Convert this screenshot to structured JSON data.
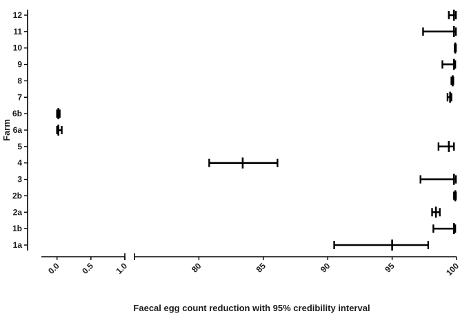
{
  "chart_data": {
    "type": "forest",
    "xlabel": "Faecal egg count reduction with 95% credibility interval",
    "ylabel": "Farm",
    "x_axis": {
      "broken": true,
      "segments": [
        {
          "range": [
            -0.2,
            1.0
          ],
          "ticks": [
            0.0,
            0.5,
            1.0
          ],
          "tick_labels": [
            "0.0",
            "0.5",
            "1.0"
          ]
        },
        {
          "range": [
            75,
            100
          ],
          "ticks": [
            80,
            85,
            90,
            95,
            100
          ],
          "tick_labels": [
            "80",
            "85",
            "90",
            "95",
            "100"
          ]
        }
      ]
    },
    "categories": [
      "1a",
      "1b",
      "2a",
      "2b",
      "3",
      "4",
      "5",
      "6a",
      "6b",
      "7",
      "8",
      "9",
      "10",
      "11",
      "12"
    ],
    "points": [
      {
        "farm": "1a",
        "estimate": 95.0,
        "lower": 90.5,
        "upper": 97.8
      },
      {
        "farm": "1b",
        "estimate": 99.8,
        "lower": 98.2,
        "upper": 99.9
      },
      {
        "farm": "2a",
        "estimate": 98.4,
        "lower": 98.1,
        "upper": 98.7
      },
      {
        "farm": "2b",
        "estimate": 99.9,
        "lower": 99.8,
        "upper": 99.95
      },
      {
        "farm": "3",
        "estimate": 99.8,
        "lower": 97.2,
        "upper": 99.95
      },
      {
        "farm": "4",
        "estimate": 83.4,
        "lower": 80.8,
        "upper": 86.1
      },
      {
        "farm": "5",
        "estimate": 99.4,
        "lower": 98.6,
        "upper": 99.8
      },
      {
        "farm": "6a",
        "estimate": 0.02,
        "lower": 0.0,
        "upper": 0.07
      },
      {
        "farm": "6b",
        "estimate": 0.02,
        "lower": 0.0,
        "upper": 0.04
      },
      {
        "farm": "7",
        "estimate": 99.5,
        "lower": 99.3,
        "upper": 99.6
      },
      {
        "farm": "8",
        "estimate": 99.7,
        "lower": 99.6,
        "upper": 99.75
      },
      {
        "farm": "9",
        "estimate": 99.8,
        "lower": 98.9,
        "upper": 99.9
      },
      {
        "farm": "10",
        "estimate": 99.9,
        "lower": 99.85,
        "upper": 99.95
      },
      {
        "farm": "11",
        "estimate": 99.8,
        "lower": 97.4,
        "upper": 99.95
      },
      {
        "farm": "12",
        "estimate": 99.8,
        "lower": 99.4,
        "upper": 99.95
      }
    ],
    "grid": false,
    "legend": "none"
  }
}
